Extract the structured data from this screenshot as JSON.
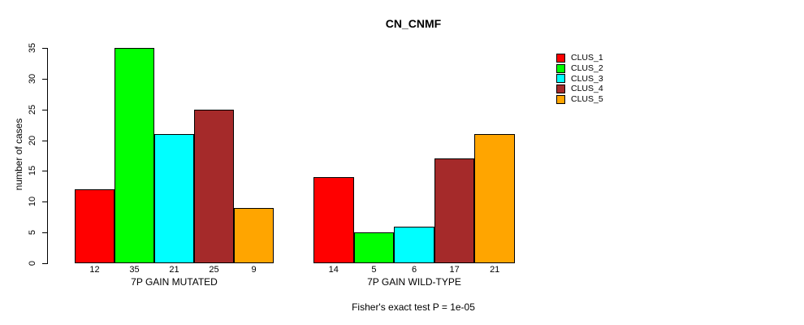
{
  "title": "CN_CNMF",
  "caption": "Fisher's exact test P = 1e-05",
  "chart_data": {
    "type": "bar",
    "title": "CN_CNMF",
    "xlabel": "",
    "ylabel": "number of cases",
    "ylim": [
      0,
      35
    ],
    "yticks": [
      0,
      5,
      10,
      15,
      20,
      25,
      30,
      35
    ],
    "grid": false,
    "legend_position": "right",
    "bar_value_labels": true,
    "categories": [
      "7P GAIN MUTATED",
      "7P GAIN WILD-TYPE"
    ],
    "series": [
      {
        "name": "CLUS_1",
        "color": "#FF0000",
        "values": [
          12,
          14
        ]
      },
      {
        "name": "CLUS_2",
        "color": "#00FF00",
        "values": [
          35,
          5
        ]
      },
      {
        "name": "CLUS_3",
        "color": "#00FFFF",
        "values": [
          21,
          6
        ]
      },
      {
        "name": "CLUS_4",
        "color": "#A52A2A",
        "values": [
          25,
          17
        ]
      },
      {
        "name": "CLUS_5",
        "color": "#FFA500",
        "values": [
          9,
          21
        ]
      }
    ],
    "annotation": "Fisher's exact test P = 1e-05"
  }
}
